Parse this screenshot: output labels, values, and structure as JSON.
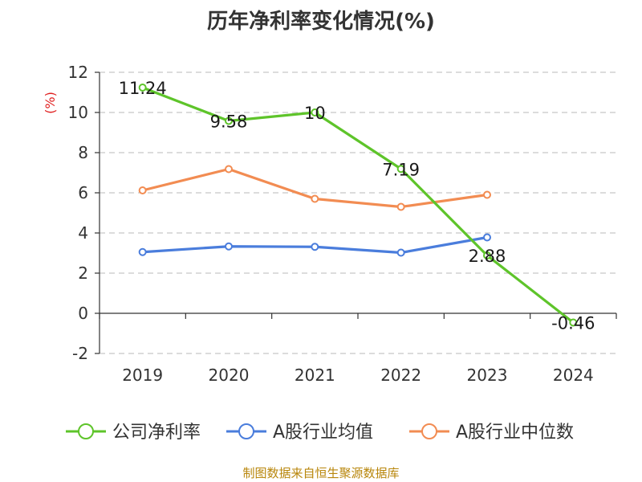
{
  "chart_data": {
    "type": "line",
    "title": "历年净利率变化情况(%)",
    "ylabel": "(%)",
    "categories": [
      "2019",
      "2020",
      "2021",
      "2022",
      "2023",
      "2024"
    ],
    "y_ticks": [
      "12",
      "10",
      "8",
      "6",
      "4",
      "2",
      "0",
      "-2"
    ],
    "ylim": [
      -2,
      12
    ],
    "grid": true,
    "legend_position": "bottom",
    "series": [
      {
        "name": "公司净利率",
        "color": "#5ec42a",
        "values": [
          11.24,
          9.58,
          10,
          7.19,
          2.88,
          -0.46
        ],
        "labels": [
          "11.24",
          "9.58",
          "10",
          "7.19",
          "2.88",
          "-0.46"
        ]
      },
      {
        "name": "A股行业均值",
        "color": "#4a7ddc",
        "values": [
          3.05,
          3.33,
          3.31,
          3.02,
          3.78,
          null
        ]
      },
      {
        "name": "A股行业中位数",
        "color": "#f28c52",
        "values": [
          6.12,
          7.18,
          5.7,
          5.3,
          5.9,
          null
        ]
      }
    ]
  },
  "footer": {
    "source": "制图数据来自恒生聚源数据库"
  }
}
